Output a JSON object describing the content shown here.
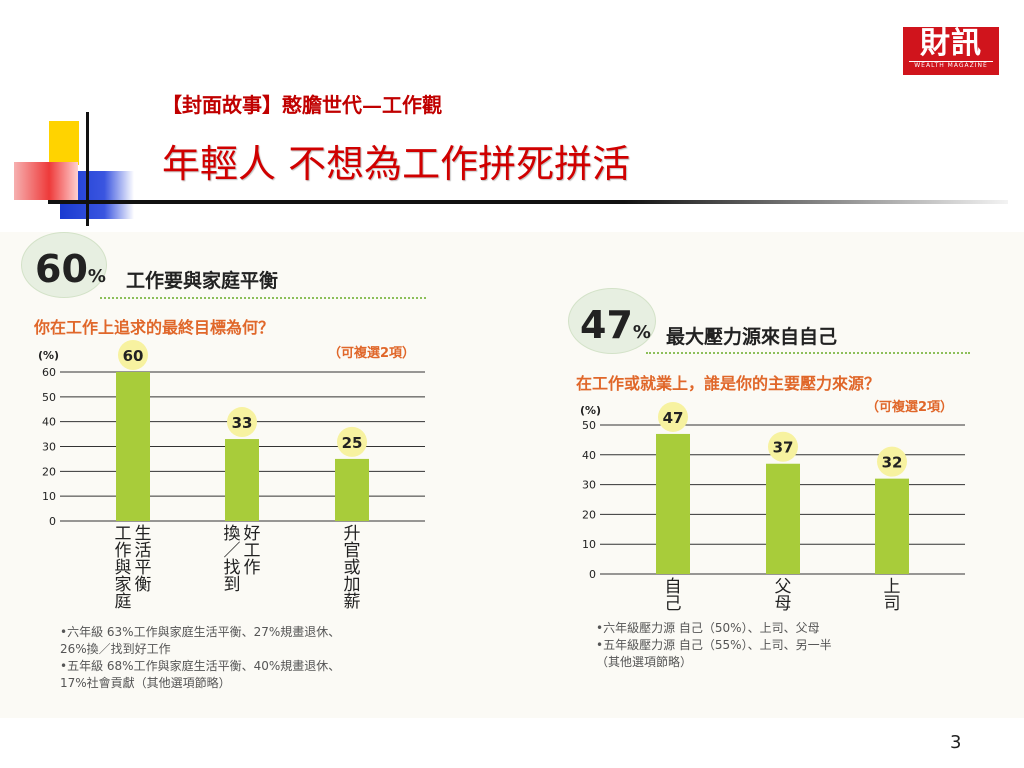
{
  "logo": {
    "main": "財訊",
    "sub": "WEALTH MAGAZINE"
  },
  "subtitle": "【封面故事】憨膽世代—工作觀",
  "title": "年輕人  不想為工作拼死拼活",
  "slide_number": "3",
  "chart_left": {
    "headline_number": "60",
    "headline_unit": "%",
    "headline_text": "工作要與家庭平衡",
    "question": "你在工作上追求的最終目標為何？",
    "note": "（可複選2項）",
    "unit_label": "(%)",
    "footnotes": [
      "•六年級  63%工作與家庭生活平衡、27%規畫退休、",
      "   26%換／找到好工作",
      "•五年級  68%工作與家庭生活平衡、40%規畫退休、",
      "   17%社會貢獻（其他選項節略）"
    ]
  },
  "chart_right": {
    "headline_number": "47",
    "headline_unit": "%",
    "headline_text": "最大壓力源來自自己",
    "question": "在工作或就業上，誰是你的主要壓力來源？",
    "note": "（可複選2項）",
    "unit_label": "(%)",
    "footnotes": [
      "•六年級壓力源  自己（50%）、上司、父母",
      "•五年級壓力源  自己（55%）、上司、另一半",
      "  （其他選項節略）"
    ]
  },
  "chart_data": [
    {
      "type": "bar",
      "categories": [
        "工作與家庭生活平衡",
        "換／找到好工作",
        "升官或加薪"
      ],
      "category_columns": [
        [
          "工作與家庭",
          "生活平衡"
        ],
        [
          "換／找到",
          "好工作"
        ],
        [
          "升官或加薪"
        ]
      ],
      "values": [
        60,
        33,
        25
      ],
      "ylabel": "(%)",
      "ylim": [
        0,
        60
      ],
      "yticks": [
        0,
        10,
        20,
        30,
        40,
        50,
        60
      ],
      "grid": true,
      "bar_color": "#a8cc3a",
      "bubble_color": "#f7f2a0"
    },
    {
      "type": "bar",
      "categories": [
        "自己",
        "父母",
        "上司"
      ],
      "category_columns": [
        [
          "自己"
        ],
        [
          "父母"
        ],
        [
          "上司"
        ]
      ],
      "values": [
        47,
        37,
        32
      ],
      "ylabel": "(%)",
      "ylim": [
        0,
        50
      ],
      "yticks": [
        0,
        10,
        20,
        30,
        40,
        50
      ],
      "grid": true,
      "bar_color": "#a8cc3a",
      "bubble_color": "#f7f2a0"
    }
  ]
}
